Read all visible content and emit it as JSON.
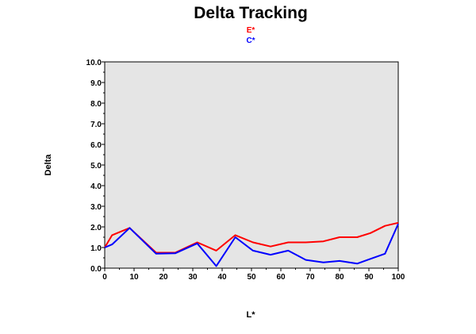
{
  "chart_data": {
    "type": "line",
    "title": "Delta Tracking",
    "xlabel": "L*",
    "ylabel": "Delta",
    "xlim": [
      0,
      100
    ],
    "ylim": [
      0,
      10
    ],
    "x_ticks": [
      "0",
      "10",
      "20",
      "30",
      "40",
      "50",
      "60",
      "70",
      "80",
      "90",
      "100"
    ],
    "y_ticks": [
      "0.0",
      "1.0",
      "2.0",
      "3.0",
      "4.0",
      "5.0",
      "6.0",
      "7.0",
      "8.0",
      "9.0",
      "10.0"
    ],
    "grid": false,
    "plot_background": "#e5e5e5",
    "legend_position": "top-center",
    "series": [
      {
        "name": "E*",
        "color": "#ff0000",
        "x": [
          0,
          2.5,
          8.5,
          17.5,
          24,
          31.5,
          38,
          44.5,
          50.5,
          56.5,
          62.5,
          68.5,
          74.5,
          80,
          86,
          90.5,
          95.5,
          100
        ],
        "y": [
          1.0,
          1.6,
          1.95,
          0.75,
          0.75,
          1.25,
          0.85,
          1.6,
          1.25,
          1.05,
          1.25,
          1.25,
          1.3,
          1.5,
          1.5,
          1.7,
          2.05,
          2.2
        ]
      },
      {
        "name": "C*",
        "color": "#0000ff",
        "x": [
          0,
          2.5,
          8.5,
          17.5,
          24,
          31.5,
          38,
          44.5,
          50.5,
          56.5,
          62.5,
          68.5,
          74.5,
          80,
          86,
          90.5,
          95.5,
          100
        ],
        "y": [
          1.0,
          1.15,
          1.95,
          0.7,
          0.72,
          1.2,
          0.1,
          1.5,
          0.85,
          0.65,
          0.85,
          0.4,
          0.28,
          0.35,
          0.22,
          0.45,
          0.7,
          2.15
        ]
      }
    ]
  }
}
